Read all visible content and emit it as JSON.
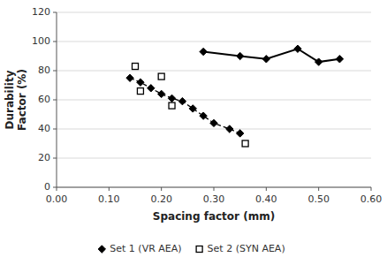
{
  "chart_data": {
    "type": "scatter",
    "x_label": "Spacing factor (mm)",
    "y_label": "Durability\nFactor (%)",
    "xlim": [
      0.0,
      0.6
    ],
    "ylim": [
      0,
      120
    ],
    "xticks": [
      {
        "value": 0.0,
        "label": "0.00"
      },
      {
        "value": 0.1,
        "label": "0.10"
      },
      {
        "value": 0.2,
        "label": "0.20"
      },
      {
        "value": 0.3,
        "label": "0.30"
      },
      {
        "value": 0.4,
        "label": "0.40"
      },
      {
        "value": 0.5,
        "label": "0.50"
      },
      {
        "value": 0.6,
        "label": "0.60"
      }
    ],
    "yticks": [
      0,
      20,
      40,
      60,
      80,
      100,
      120
    ],
    "grid": "y",
    "legend": "bottom",
    "series": [
      {
        "name": "Set 1 (VR AEA)",
        "type": "line",
        "marker": "diamond",
        "line_style": "dashed",
        "color": "#000000",
        "x": [
          0.14,
          0.16,
          0.18,
          0.2,
          0.22,
          0.24,
          0.26,
          0.28,
          0.3,
          0.33,
          0.35
        ],
        "values": [
          75,
          72,
          68,
          64,
          61,
          59,
          54,
          49,
          44,
          40,
          37
        ]
      },
      {
        "name": "Set 1 (VR AEA)",
        "type": "line",
        "marker": "diamond",
        "line_style": "solid",
        "color": "#000000",
        "x": [
          0.28,
          0.35,
          0.4,
          0.46,
          0.5,
          0.54
        ],
        "values": [
          93,
          90,
          88,
          95,
          86,
          88
        ]
      },
      {
        "name": "Set 2 (SYN AEA)",
        "type": "scatter",
        "marker": "open-square",
        "color": "#000000",
        "x": [
          0.15,
          0.16,
          0.2,
          0.22,
          0.36
        ],
        "values": [
          83,
          66,
          76,
          56,
          30
        ]
      }
    ]
  }
}
